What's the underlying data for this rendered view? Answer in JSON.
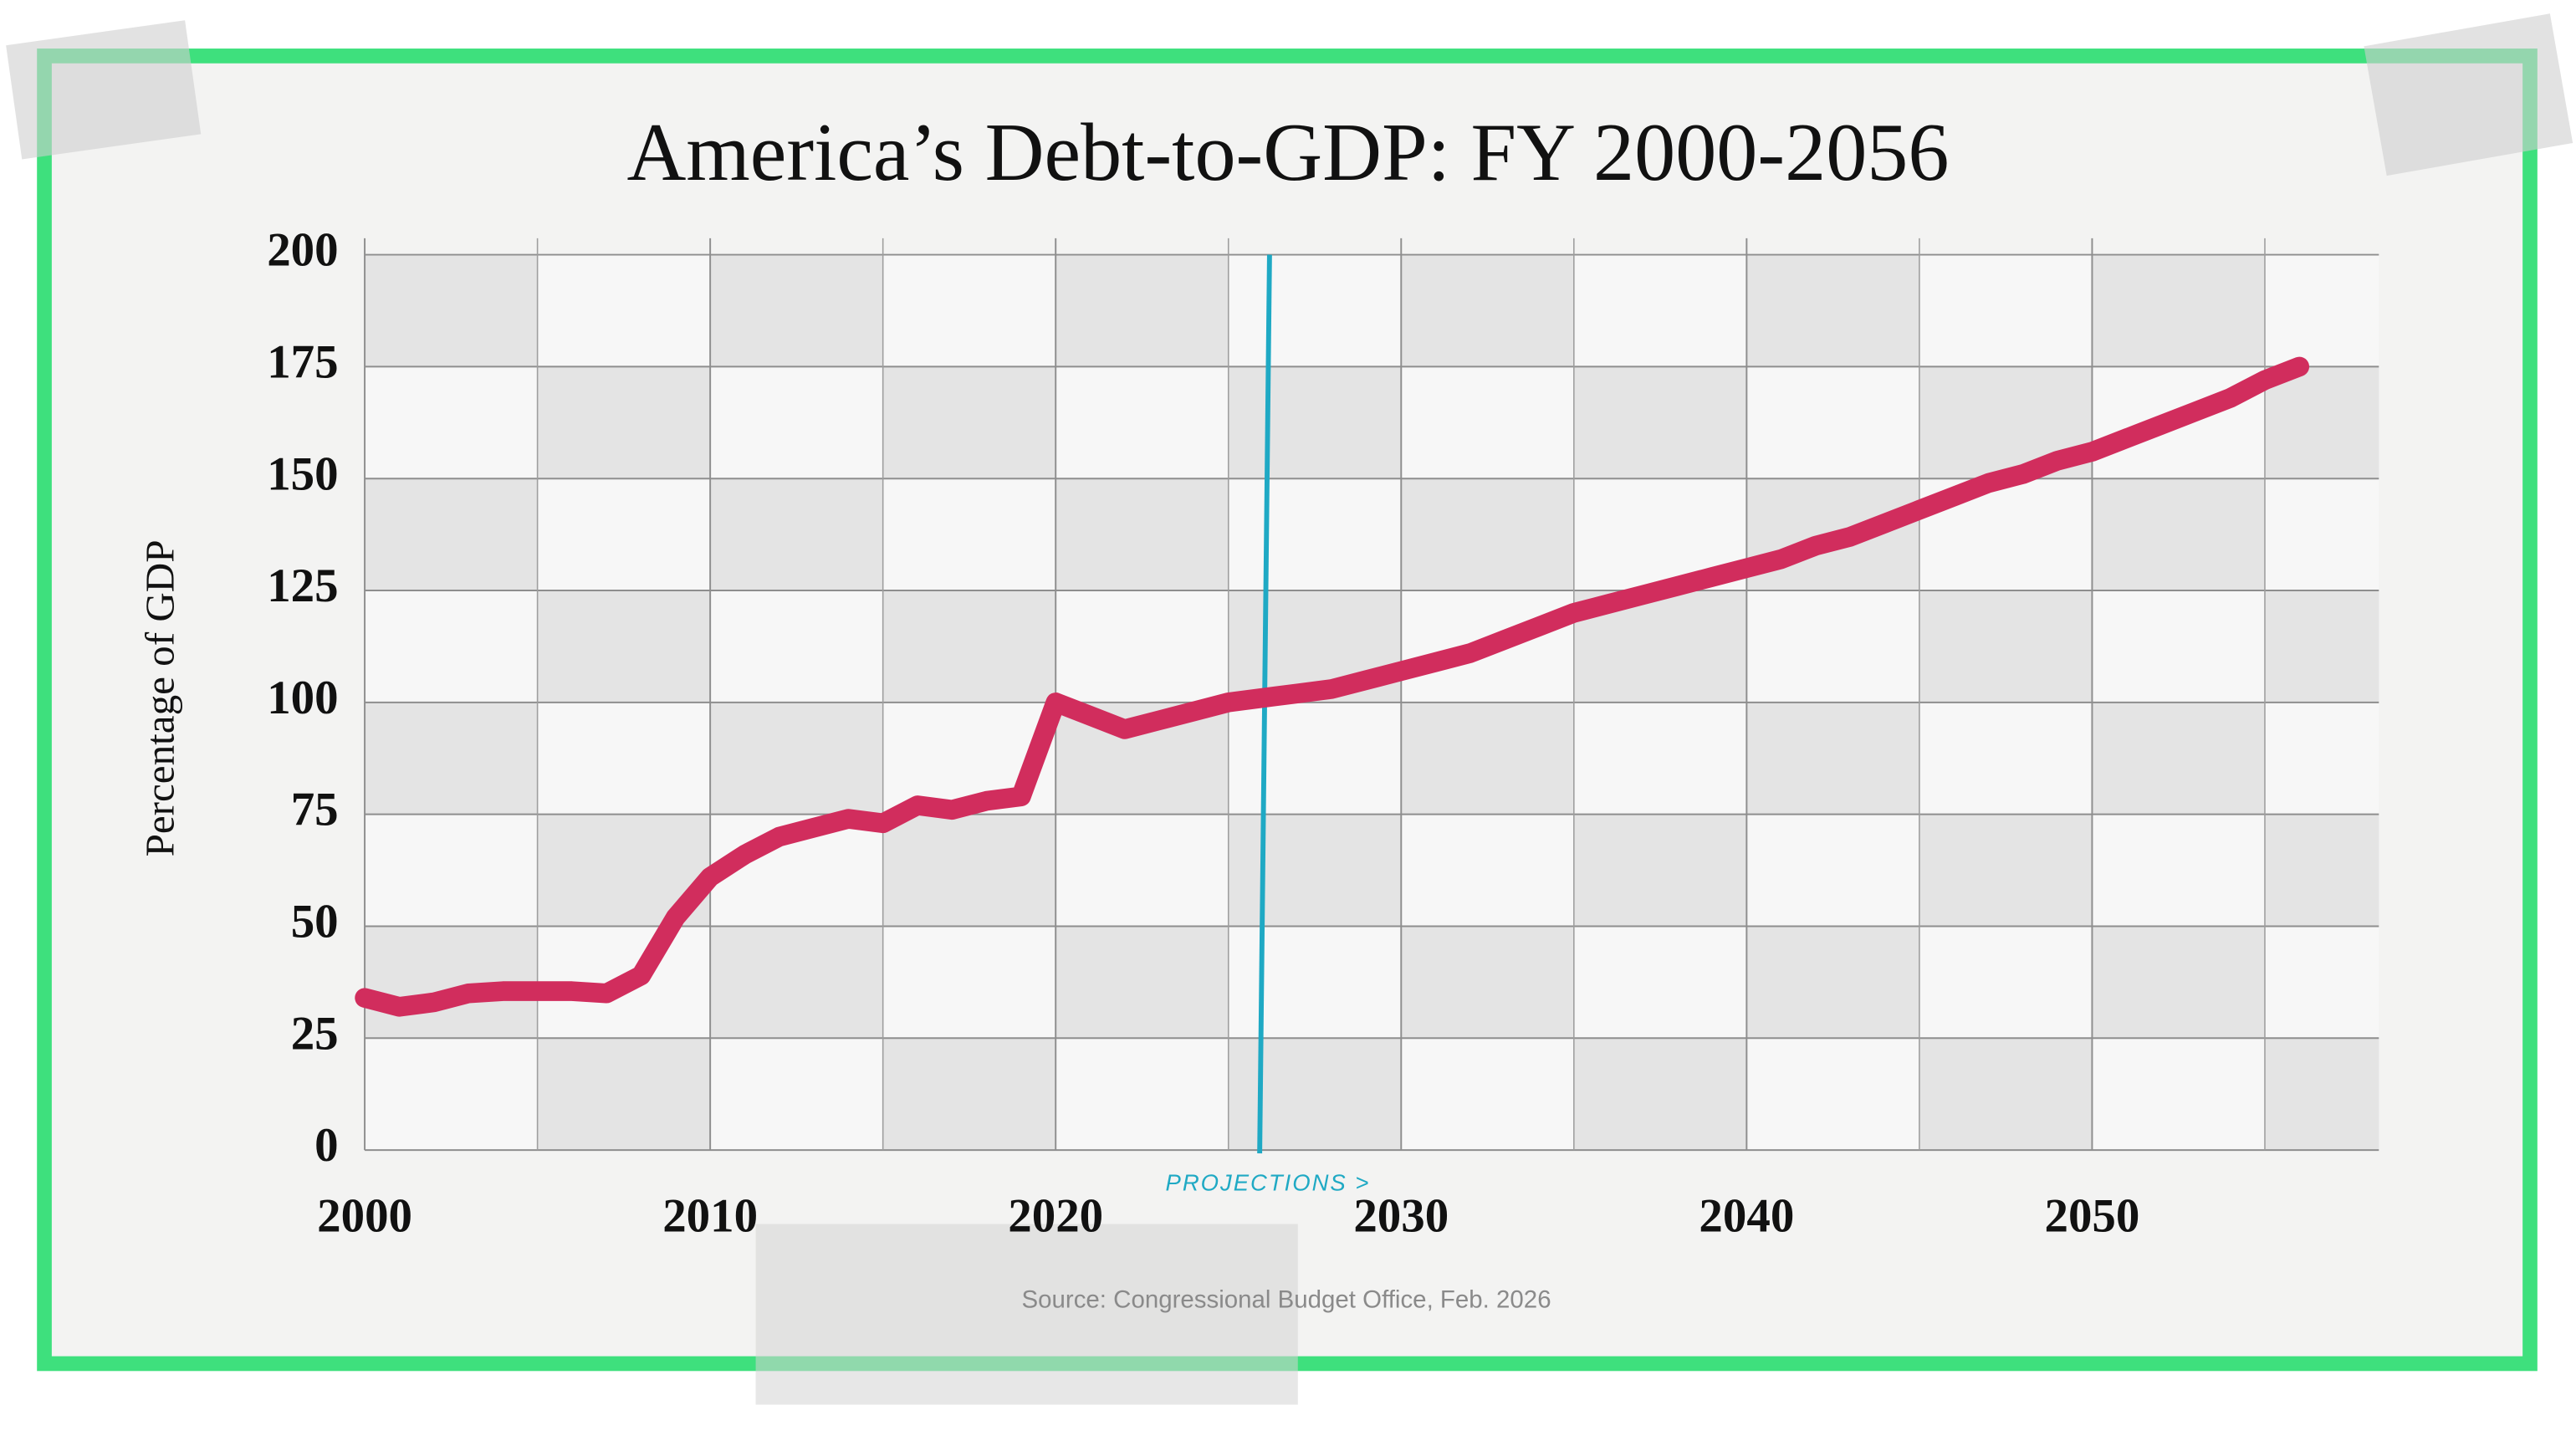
{
  "chart_data": {
    "type": "line",
    "title": "America’s Debt-to-GDP: FY 2000-2056",
    "y_label": "Percentage of GDP",
    "source": "Source: Congressional Budget Office, Feb. 2026",
    "annotation": {
      "text": "PROJECTIONS >",
      "x": 2026,
      "color": "#1fa9c4"
    },
    "x": [
      2000,
      2001,
      2002,
      2003,
      2004,
      2005,
      2006,
      2007,
      2008,
      2009,
      2010,
      2011,
      2012,
      2013,
      2014,
      2015,
      2016,
      2017,
      2018,
      2019,
      2020,
      2021,
      2022,
      2023,
      2024,
      2025,
      2026,
      2027,
      2028,
      2029,
      2030,
      2031,
      2032,
      2033,
      2034,
      2035,
      2036,
      2037,
      2038,
      2039,
      2040,
      2041,
      2042,
      2043,
      2044,
      2045,
      2046,
      2047,
      2048,
      2049,
      2050,
      2051,
      2052,
      2053,
      2054,
      2055,
      2056
    ],
    "series": [
      {
        "color": "#d12d5d",
        "values": [
          34,
          32,
          33,
          35,
          35.5,
          35.5,
          35.5,
          35,
          39,
          52,
          61,
          66,
          70,
          72,
          74,
          73,
          77,
          76,
          78,
          79,
          100,
          97,
          94,
          96,
          98,
          100,
          101,
          102,
          103,
          105,
          107,
          109,
          111,
          114,
          117,
          120,
          122,
          124,
          126,
          128,
          130,
          132,
          135,
          137,
          140,
          143,
          146,
          149,
          151,
          154,
          156,
          159,
          162,
          165,
          168,
          172,
          175
        ]
      }
    ],
    "xlim": [
      2000,
      2058.3
    ],
    "ylim": [
      0,
      200
    ],
    "xticks": [
      2000,
      2010,
      2020,
      2030,
      2040,
      2050
    ],
    "xminor": [
      2005,
      2015,
      2025,
      2035,
      2045,
      2055
    ],
    "yticks": [
      0,
      25,
      50,
      75,
      100,
      125,
      150,
      175,
      200
    ],
    "grid": true
  }
}
